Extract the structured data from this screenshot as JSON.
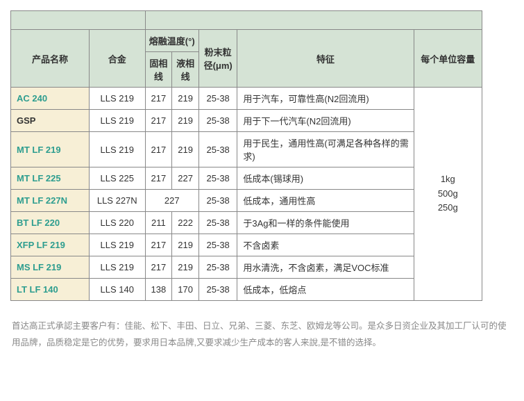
{
  "headers": {
    "product_name": "产品名称",
    "alloy": "合金",
    "melt_temp": "熔融温度(°)",
    "solidus": "固相线",
    "liquidus": "液相线",
    "particle": "粉末粒径(μm)",
    "feature": "特征",
    "capacity": "每个单位容量"
  },
  "rows": [
    {
      "name": "AC 240",
      "link": true,
      "alloy": "LLS 219",
      "sol": "217",
      "liq": "219",
      "sol_liq_merged": false,
      "part": "25-38",
      "feature": "用于汽车，可靠性高(N2回流用)"
    },
    {
      "name": "GSP",
      "link": false,
      "alloy": "LLS 219",
      "sol": "217",
      "liq": "219",
      "sol_liq_merged": false,
      "part": "25-38",
      "feature": "用于下一代汽车(N2回流用)"
    },
    {
      "name": "MT LF 219",
      "link": true,
      "alloy": "LLS 219",
      "sol": "217",
      "liq": "219",
      "sol_liq_merged": false,
      "part": "25-38",
      "feature": "用于民生，通用性高(可满足各种各样的需求)"
    },
    {
      "name": "MT LF 225",
      "link": true,
      "alloy": "LLS 225",
      "sol": "217",
      "liq": "227",
      "sol_liq_merged": false,
      "part": "25-38",
      "feature": "低成本(锡球用)"
    },
    {
      "name": "MT LF 227N",
      "link": true,
      "alloy": "LLS 227N",
      "sol": "227",
      "liq": "",
      "sol_liq_merged": true,
      "part": "25-38",
      "feature": "低成本，通用性高"
    },
    {
      "name": "BT LF 220",
      "link": true,
      "alloy": "LLS 220",
      "sol": "211",
      "liq": "222",
      "sol_liq_merged": false,
      "part": "25-38",
      "feature": "于3Ag和一样的条件能使用"
    },
    {
      "name": "XFP LF 219",
      "link": true,
      "alloy": "LLS 219",
      "sol": "217",
      "liq": "219",
      "sol_liq_merged": false,
      "part": "25-38",
      "feature": "不含卤素"
    },
    {
      "name": "MS LF 219",
      "link": true,
      "alloy": "LLS 219",
      "sol": "217",
      "liq": "219",
      "sol_liq_merged": false,
      "part": "25-38",
      "feature": "用水清洗，不含卤素，满足VOC标准"
    },
    {
      "name": "LT LF 140",
      "link": true,
      "alloy": "LLS 140",
      "sol": "138",
      "liq": "170",
      "sol_liq_merged": false,
      "part": "25-38",
      "feature": "低成本，低熔点"
    }
  ],
  "capacity_lines": [
    "1kg",
    "500g",
    "250g"
  ],
  "footer": "首达高正式承認主要客户有：佳能、松下、丰田、日立、兄弟、三菱、东芝、欧姆龙等公司。是众多日资企业及其加工厂认可的使用品牌，品质稳定是它的优势，要求用日本品牌,又要求减少生产成本的客人来說,是不错的选择。"
}
